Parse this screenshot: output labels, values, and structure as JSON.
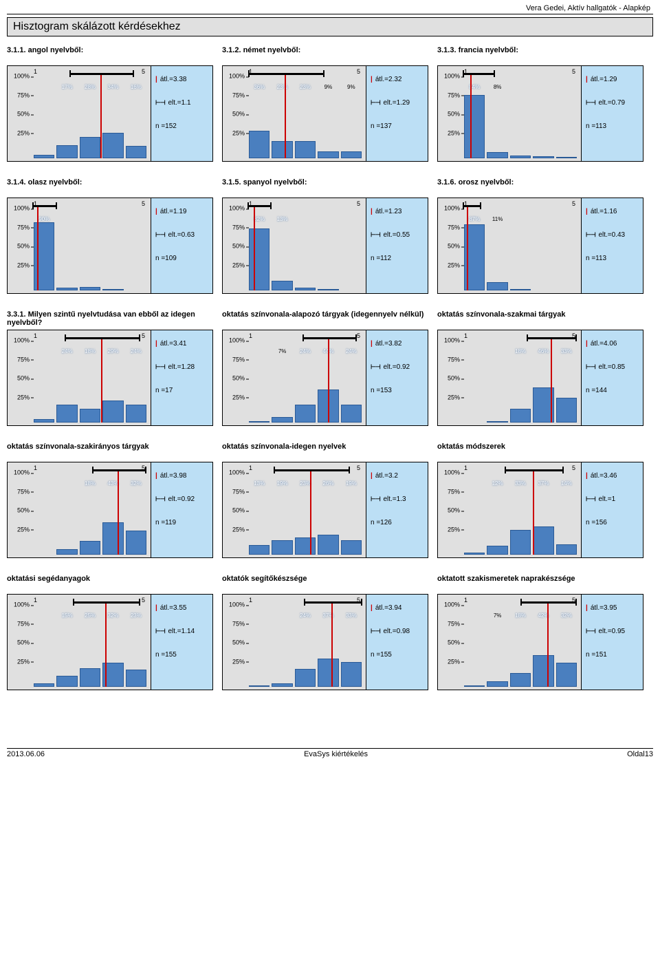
{
  "header_right": "Vera Gedei, Aktív hallgatók - Alapkép",
  "section_title": "Hisztogram skálázott kérdésekhez",
  "y_axis": [
    "100%",
    "75%",
    "50%",
    "25%"
  ],
  "y_positions": [
    100,
    75,
    50,
    25
  ],
  "x_min_label": "1",
  "x_max_label": "5",
  "legend": {
    "mean_prefix": "átl.=",
    "dev_prefix": "elt.=",
    "n_prefix": "n ="
  },
  "colors": {
    "bar_fill": "#4a7fbf",
    "bar_border": "#2a5a96",
    "chart_bg": "#e0e0e0",
    "side_bg": "#bcdff5",
    "mean": "#cc0000",
    "dev": "#000000",
    "page_bg": "#ffffff"
  },
  "footer": {
    "left": "2013.06.06",
    "center": "EvaSys kiértékelés",
    "right": "Oldal13"
  },
  "charts": [
    {
      "title": "3.1.1. angol nyelvből:",
      "bars": [
        5,
        17,
        28,
        34,
        16
      ],
      "labels": [
        "",
        "17%",
        "28%",
        "34%",
        "16%"
      ],
      "mean": 3.38,
      "dev": 1.1,
      "n": 152
    },
    {
      "title": "3.1.2. német nyelvből:",
      "bars": [
        36,
        23,
        23,
        9,
        9
      ],
      "labels": [
        "36%",
        "23%",
        "23%",
        "9%",
        "9%"
      ],
      "mean": 2.32,
      "dev": 1.29,
      "n": 137
    },
    {
      "title": "3.1.3. francia nyelvből:",
      "bars": [
        84,
        8,
        4,
        3,
        1
      ],
      "labels": [
        "84%",
        "8%",
        "",
        "",
        ""
      ],
      "mean": 1.29,
      "dev": 0.79,
      "n": 113
    },
    {
      "title": "3.1.4. olasz nyelvből:",
      "bars": [
        90,
        4,
        5,
        1,
        0
      ],
      "labels": [
        "90%",
        "",
        "",
        "",
        ""
      ],
      "mean": 1.19,
      "dev": 0.63,
      "n": 109
    },
    {
      "title": "3.1.5. spanyol nyelvből:",
      "bars": [
        82,
        13,
        4,
        1,
        0
      ],
      "labels": [
        "82%",
        "13%",
        "",
        "",
        ""
      ],
      "mean": 1.23,
      "dev": 0.55,
      "n": 112
    },
    {
      "title": "3.1.6. orosz nyelvből:",
      "bars": [
        87,
        11,
        2,
        0,
        0
      ],
      "labels": [
        "87%",
        "11%",
        "",
        "",
        ""
      ],
      "mean": 1.16,
      "dev": 0.43,
      "n": 113
    },
    {
      "title": "3.3.1. Milyen szintű nyelvtudása van ebből az idegen nyelvből?",
      "bars": [
        5,
        24,
        18,
        29,
        24
      ],
      "labels": [
        "",
        "24%",
        "18%",
        "29%",
        "24%"
      ],
      "mean": 3.41,
      "dev": 1.28,
      "n": 17
    },
    {
      "title": "oktatás színvonala-alapozó tárgyak (idegennyelv nélkül)",
      "bars": [
        1,
        7,
        24,
        44,
        24
      ],
      "labels": [
        "",
        "7%",
        "24%",
        "44%",
        "24%"
      ],
      "mean": 3.82,
      "dev": 0.92,
      "n": 153
    },
    {
      "title": "oktatás színvonala-szakmai tárgyak",
      "bars": [
        0,
        2,
        18,
        46,
        33
      ],
      "labels": [
        "",
        "",
        "18%",
        "46%",
        "33%"
      ],
      "mean": 4.06,
      "dev": 0.85,
      "n": 144
    },
    {
      "title": "oktatás színvonala-szakirányos tárgyak",
      "bars": [
        0,
        7,
        18,
        43,
        32
      ],
      "labels": [
        "",
        "",
        "18%",
        "43%",
        "32%"
      ],
      "mean": 3.98,
      "dev": 0.92,
      "n": 119
    },
    {
      "title": "oktatás színvonala-idegen nyelvek",
      "bars": [
        13,
        19,
        23,
        26,
        19
      ],
      "labels": [
        "13%",
        "19%",
        "23%",
        "26%",
        "19%"
      ],
      "mean": 3.2,
      "dev": 1.3,
      "n": 126
    },
    {
      "title": "oktatás módszerek",
      "bars": [
        3,
        12,
        33,
        37,
        14
      ],
      "labels": [
        "",
        "12%",
        "33%",
        "37%",
        "14%"
      ],
      "mean": 3.46,
      "dev": 1,
      "n": 156
    },
    {
      "title": "oktatási segédanyagok",
      "bars": [
        5,
        15,
        25,
        32,
        23
      ],
      "labels": [
        "",
        "15%",
        "25%",
        "32%",
        "23%"
      ],
      "mean": 3.55,
      "dev": 1.14,
      "n": 155
    },
    {
      "title": "oktatók segítőkészsége",
      "bars": [
        1,
        5,
        24,
        37,
        33
      ],
      "labels": [
        "",
        "",
        "24%",
        "37%",
        "33%"
      ],
      "mean": 3.94,
      "dev": 0.98,
      "n": 155
    },
    {
      "title": "oktatott szakismeretek naprakészsége",
      "bars": [
        1,
        7,
        18,
        42,
        32
      ],
      "labels": [
        "",
        "7%",
        "18%",
        "42%",
        "32%"
      ],
      "mean": 3.95,
      "dev": 0.95,
      "n": 151
    }
  ]
}
